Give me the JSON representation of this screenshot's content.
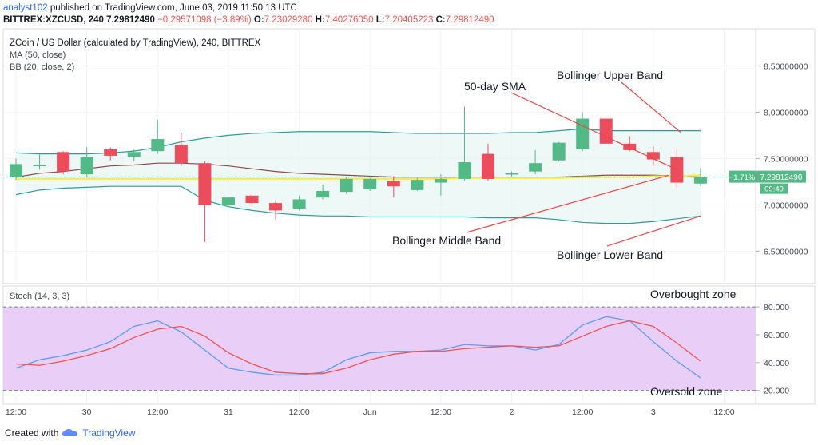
{
  "header": {
    "user": "analyst102",
    "published": "published on TradingView.com, June 03, 2019 11:50:13 UTC",
    "symbol": "BITTREX:XZCUSD, 240",
    "price": "7.29812490",
    "change": "−0.29571098 (−3.89%)",
    "ohlc_o_label": "O:",
    "ohlc_o": "7.23029280",
    "ohlc_h_label": "H:",
    "ohlc_h": "7.40276050",
    "ohlc_l_label": "L:",
    "ohlc_l": "7.20405223",
    "ohlc_c_label": "C:",
    "ohlc_c": "7.29812490"
  },
  "legend": {
    "title": "ZCoin / US Dollar (calculated by TradingView), 240, BITTREX",
    "ma": "MA (50, close)",
    "bb": "BB (20, close, 2)",
    "stoch": "Stoch (14, 3, 3)"
  },
  "annotations": {
    "sma": "50-day SMA",
    "upper": "Bollinger Upper Band",
    "middle": "Bollinger Middle Band",
    "lower": "Bollinger Lower Band",
    "overbought": "Overbought zone",
    "oversold": "Oversold zone"
  },
  "price_tag": {
    "pct": "−1.71%",
    "price": "7.29812490",
    "timer": "09:49"
  },
  "footer": {
    "created": "Created with",
    "brand": "TradingView"
  },
  "colors": {
    "up": "#53b987",
    "down": "#eb4d5c",
    "band": "#2e9c9c",
    "sma": "#ffeb3b",
    "middle": "#8b4a4a",
    "stoch_k": "#5b9cf6",
    "stoch_d": "#ef5350",
    "stoch_bg": "#e8ccf7"
  },
  "chart_data": [
    {
      "type": "candlestick",
      "ylim": [
        6.15,
        8.9
      ],
      "yticks": [
        "8.50000000",
        "8.00000000",
        "7.50000000",
        "7.00000000",
        "6.50000000"
      ],
      "ytick_values": [
        8.5,
        8.0,
        7.5,
        7.0,
        6.5
      ],
      "xticks": [
        "12:00",
        "30",
        "12:00",
        "31",
        "12:00",
        "Jun",
        "12:00",
        "2",
        "12:00",
        "3",
        "12:00"
      ],
      "xtick_index": [
        0,
        3,
        6,
        9,
        12,
        15,
        18,
        21,
        24,
        27,
        30
      ],
      "candles": [
        {
          "o": 7.3,
          "h": 7.5,
          "l": 7.27,
          "c": 7.44
        },
        {
          "o": 7.42,
          "h": 7.55,
          "l": 7.38,
          "c": 7.43
        },
        {
          "o": 7.57,
          "h": 7.58,
          "l": 7.33,
          "c": 7.36
        },
        {
          "o": 7.33,
          "h": 7.62,
          "l": 7.3,
          "c": 7.52
        },
        {
          "o": 7.6,
          "h": 7.62,
          "l": 7.48,
          "c": 7.53
        },
        {
          "o": 7.52,
          "h": 7.6,
          "l": 7.47,
          "c": 7.57
        },
        {
          "o": 7.58,
          "h": 7.92,
          "l": 7.55,
          "c": 7.71
        },
        {
          "o": 7.65,
          "h": 7.78,
          "l": 7.42,
          "c": 7.45
        },
        {
          "o": 7.45,
          "h": 7.47,
          "l": 6.6,
          "c": 7.0
        },
        {
          "o": 7.0,
          "h": 7.09,
          "l": 6.98,
          "c": 7.08
        },
        {
          "o": 7.1,
          "h": 7.12,
          "l": 6.98,
          "c": 7.02
        },
        {
          "o": 7.02,
          "h": 7.05,
          "l": 6.84,
          "c": 6.94
        },
        {
          "o": 6.96,
          "h": 7.1,
          "l": 6.94,
          "c": 7.06
        },
        {
          "o": 7.08,
          "h": 7.22,
          "l": 7.06,
          "c": 7.15
        },
        {
          "o": 7.14,
          "h": 7.3,
          "l": 7.12,
          "c": 7.28
        },
        {
          "o": 7.17,
          "h": 7.29,
          "l": 7.15,
          "c": 7.28
        },
        {
          "o": 7.26,
          "h": 7.31,
          "l": 7.08,
          "c": 7.2
        },
        {
          "o": 7.16,
          "h": 7.29,
          "l": 7.15,
          "c": 7.27
        },
        {
          "o": 7.24,
          "h": 7.33,
          "l": 7.1,
          "c": 7.28
        },
        {
          "o": 7.28,
          "h": 8.06,
          "l": 7.26,
          "c": 7.46
        },
        {
          "o": 7.55,
          "h": 7.66,
          "l": 7.26,
          "c": 7.28
        },
        {
          "o": 7.34,
          "h": 7.36,
          "l": 7.3,
          "c": 7.34
        },
        {
          "o": 7.36,
          "h": 7.59,
          "l": 7.33,
          "c": 7.45
        },
        {
          "o": 7.48,
          "h": 7.68,
          "l": 7.47,
          "c": 7.67
        },
        {
          "o": 7.6,
          "h": 8.0,
          "l": 7.58,
          "c": 7.93
        },
        {
          "o": 7.93,
          "h": 7.93,
          "l": 7.66,
          "c": 7.66
        },
        {
          "o": 7.66,
          "h": 7.74,
          "l": 7.58,
          "c": 7.59
        },
        {
          "o": 7.57,
          "h": 7.63,
          "l": 7.42,
          "c": 7.49
        },
        {
          "o": 7.52,
          "h": 7.6,
          "l": 7.18,
          "c": 7.24
        },
        {
          "o": 7.23,
          "h": 7.4,
          "l": 7.2,
          "c": 7.3
        }
      ],
      "bb_upper": [
        7.56,
        7.55,
        7.55,
        7.55,
        7.56,
        7.58,
        7.62,
        7.68,
        7.72,
        7.75,
        7.77,
        7.78,
        7.79,
        7.79,
        7.79,
        7.79,
        7.78,
        7.77,
        7.77,
        7.77,
        7.77,
        7.78,
        7.78,
        7.8,
        7.82,
        7.8,
        7.8,
        7.8,
        7.8,
        7.8
      ],
      "bb_middle": [
        7.3,
        7.34,
        7.36,
        7.39,
        7.42,
        7.43,
        7.45,
        7.45,
        7.44,
        7.42,
        7.39,
        7.36,
        7.34,
        7.33,
        7.32,
        7.31,
        7.3,
        7.3,
        7.3,
        7.3,
        7.3,
        7.3,
        7.3,
        7.3,
        7.31,
        7.32,
        7.32,
        7.32,
        7.31,
        7.3
      ],
      "bb_lower": [
        7.11,
        7.16,
        7.18,
        7.19,
        7.2,
        7.2,
        7.2,
        7.2,
        7.05,
        6.98,
        6.94,
        6.91,
        6.89,
        6.88,
        6.88,
        6.87,
        6.87,
        6.87,
        6.87,
        6.87,
        6.86,
        6.86,
        6.86,
        6.84,
        6.81,
        6.8,
        6.8,
        6.82,
        6.85,
        6.88
      ],
      "sma50": [
        7.28,
        7.28,
        7.28,
        7.28,
        7.28,
        7.28,
        7.28,
        7.28,
        7.28,
        7.28,
        7.28,
        7.28,
        7.28,
        7.28,
        7.28,
        7.28,
        7.28,
        7.28,
        7.28,
        7.29,
        7.29,
        7.29,
        7.29,
        7.29,
        7.3,
        7.3,
        7.3,
        7.31,
        7.31,
        7.32
      ]
    },
    {
      "type": "line",
      "ylim": [
        10,
        95
      ],
      "yticks": [
        "80.000",
        "60.000",
        "40.000",
        "20.000"
      ],
      "ytick_values": [
        80,
        60,
        40,
        20
      ],
      "series": [
        {
          "color_key": "stoch_k",
          "values": [
            36,
            42,
            45,
            49,
            55,
            66,
            70,
            62,
            49,
            36,
            33,
            31,
            31,
            33,
            42,
            47,
            48,
            48,
            49,
            53,
            52,
            52,
            49,
            53,
            67,
            73,
            70,
            55,
            41,
            29
          ]
        },
        {
          "color_key": "stoch_d",
          "values": [
            39,
            38,
            41,
            45,
            50,
            58,
            64,
            66,
            59,
            47,
            39,
            33,
            32,
            32,
            36,
            42,
            46,
            48,
            48,
            50,
            51,
            52,
            51,
            52,
            59,
            66,
            70,
            66,
            54,
            41
          ]
        }
      ]
    }
  ]
}
